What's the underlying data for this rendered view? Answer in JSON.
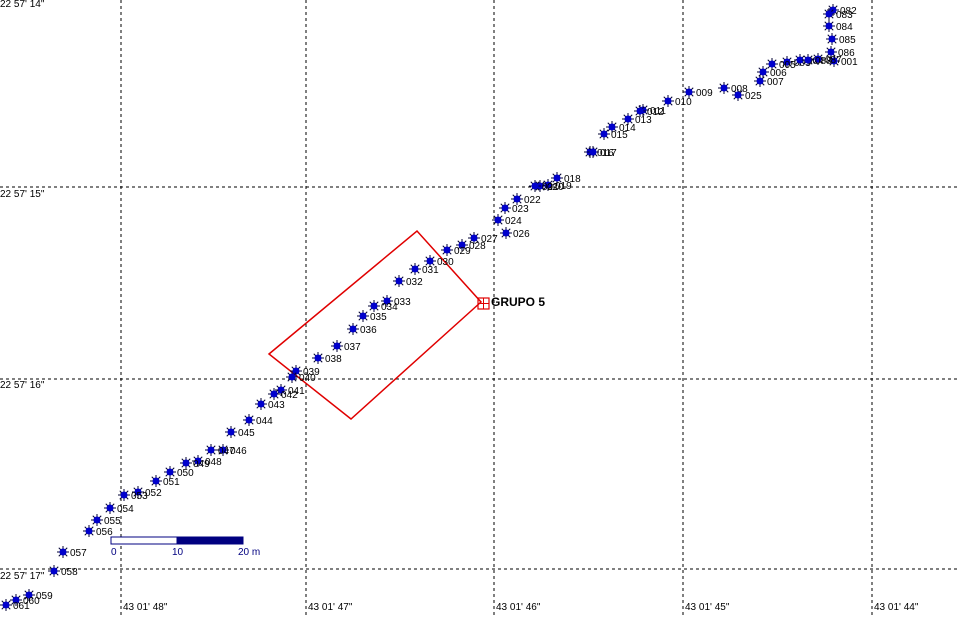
{
  "lat_labels": [
    "22 57' 14\"",
    "22 57' 15\"",
    "22 57' 16\"",
    "22 57' 17\""
  ],
  "lon_labels": [
    "43 01' 48\"",
    "43 01' 47\"",
    "43 01' 46\"",
    "43 01' 45\"",
    "43 01' 44\""
  ],
  "points": [
    {
      "label": "001"
    },
    {
      "label": "003"
    },
    {
      "label": "004"
    },
    {
      "label": "005"
    },
    {
      "label": "006"
    },
    {
      "label": "007"
    },
    {
      "label": "008"
    },
    {
      "label": "009"
    },
    {
      "label": "010"
    },
    {
      "label": "011"
    },
    {
      "label": "012"
    },
    {
      "label": "013"
    },
    {
      "label": "014"
    },
    {
      "label": "015"
    },
    {
      "label": "016"
    },
    {
      "label": "017"
    },
    {
      "label": "018"
    },
    {
      "label": "019"
    },
    {
      "label": "020"
    },
    {
      "label": "021"
    },
    {
      "label": "022"
    },
    {
      "label": "023"
    },
    {
      "label": "024"
    },
    {
      "label": "025"
    },
    {
      "label": "026"
    },
    {
      "label": "027"
    },
    {
      "label": "028"
    },
    {
      "label": "029"
    },
    {
      "label": "030"
    },
    {
      "label": "031"
    },
    {
      "label": "032"
    },
    {
      "label": "033"
    },
    {
      "label": "034"
    },
    {
      "label": "035"
    },
    {
      "label": "036"
    },
    {
      "label": "037"
    },
    {
      "label": "038"
    },
    {
      "label": "039"
    },
    {
      "label": "040"
    },
    {
      "label": "041"
    },
    {
      "label": "042"
    },
    {
      "label": "043"
    },
    {
      "label": "044"
    },
    {
      "label": "045"
    },
    {
      "label": "046"
    },
    {
      "label": "047"
    },
    {
      "label": "048"
    },
    {
      "label": "049"
    },
    {
      "label": "050"
    },
    {
      "label": "051"
    },
    {
      "label": "052"
    },
    {
      "label": "053"
    },
    {
      "label": "054"
    },
    {
      "label": "055"
    },
    {
      "label": "056"
    },
    {
      "label": "057"
    },
    {
      "label": "058"
    },
    {
      "label": "059"
    },
    {
      "label": "060"
    },
    {
      "label": "061"
    },
    {
      "label": "082"
    },
    {
      "label": "083"
    },
    {
      "label": "084"
    },
    {
      "label": "085"
    },
    {
      "label": "086"
    },
    {
      "label": "087"
    },
    {
      "label": "088"
    }
  ],
  "group": {
    "label": "GRUPO 5"
  },
  "scale_bar": {
    "labels": [
      "0",
      "10",
      "20 m"
    ]
  }
}
